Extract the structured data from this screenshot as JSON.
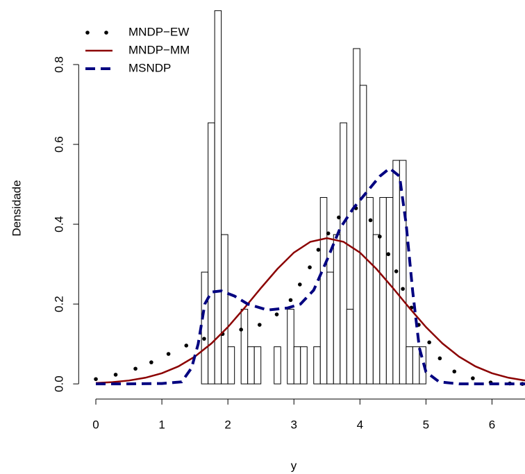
{
  "chart_data": {
    "type": "histogram",
    "x_label": "y",
    "y_label": "Densidade",
    "xlim": [
      -0.26,
      6.5
    ],
    "ylim": [
      -0.038,
      0.96
    ],
    "xticks": [
      0,
      1,
      2,
      3,
      4,
      5,
      6
    ],
    "yticks": [
      {
        "value": 0,
        "label": "0.0"
      },
      {
        "value": 0.2,
        "label": "0.2"
      },
      {
        "value": 0.4,
        "label": "0.4"
      },
      {
        "value": 0.6,
        "label": "0.6"
      },
      {
        "value": 0.8,
        "label": "0.8"
      }
    ],
    "legend": "top-left",
    "bins": [
      1.6,
      1.7,
      1.8,
      1.9,
      2.0,
      2.1,
      2.2,
      2.3,
      2.4,
      2.5,
      2.6,
      2.7,
      2.8,
      2.9,
      3.0,
      3.1,
      3.2,
      3.3,
      3.4,
      3.5,
      3.6,
      3.7,
      3.8,
      3.9,
      4.0,
      4.1,
      4.2,
      4.3,
      4.4,
      4.5,
      4.6,
      4.7,
      4.8,
      4.9,
      5.0
    ],
    "values": [
      0.28,
      0.654,
      0.935,
      0.374,
      0.093,
      0,
      0.187,
      0.093,
      0.093,
      0,
      0,
      0.093,
      0,
      0.187,
      0.093,
      0.093,
      0,
      0.093,
      0.467,
      0.28,
      0.374,
      0.654,
      0.187,
      0.84,
      0.748,
      0.467,
      0.374,
      0.467,
      0.467,
      0.56,
      0.56,
      0.093,
      0.093,
      0.093
    ],
    "series": [
      {
        "name": "MNDP−EW",
        "color": "#000000",
        "style": "points",
        "x": [
          0,
          0.3,
          0.6,
          0.84,
          1.1,
          1.37,
          1.64,
          1.92,
          2.2,
          2.48,
          2.74,
          2.95,
          3.09,
          3.24,
          3.37,
          3.52,
          3.68,
          3.94,
          4.16,
          4.3,
          4.43,
          4.55,
          4.65,
          4.78,
          4.89,
          5.05,
          5.21,
          5.43,
          5.71,
          5.98,
          6.27,
          6.46
        ],
        "values": [
          0.012,
          0.023,
          0.038,
          0.054,
          0.075,
          0.096,
          0.113,
          0.125,
          0.136,
          0.148,
          0.174,
          0.21,
          0.249,
          0.292,
          0.336,
          0.377,
          0.417,
          0.44,
          0.41,
          0.369,
          0.325,
          0.282,
          0.238,
          0.191,
          0.148,
          0.104,
          0.064,
          0.031,
          0.014,
          0.0035,
          0.001,
          0
        ]
      },
      {
        "name": "MNDP−MM",
        "color": "#8b0000",
        "style": "solid",
        "x": [
          0,
          0.25,
          0.5,
          0.75,
          1,
          1.25,
          1.5,
          1.75,
          2,
          2.25,
          2.5,
          2.75,
          3,
          3.25,
          3.5,
          3.75,
          4,
          4.25,
          4.5,
          4.75,
          5,
          5.25,
          5.5,
          5.75,
          6,
          6.25,
          6.5
        ],
        "values": [
          0.0022,
          0.0044,
          0.0084,
          0.0154,
          0.0267,
          0.0438,
          0.0684,
          0.1013,
          0.1423,
          0.19,
          0.24,
          0.288,
          0.329,
          0.356,
          0.365,
          0.356,
          0.329,
          0.288,
          0.24,
          0.19,
          0.1423,
          0.1013,
          0.0684,
          0.0438,
          0.0267,
          0.0154,
          0.0084
        ]
      },
      {
        "name": "MSNDP",
        "color": "#000080",
        "style": "dashed",
        "x": [
          0,
          0.5,
          1,
          1.3,
          1.45,
          1.55,
          1.65,
          1.75,
          1.9,
          2.1,
          2.3,
          2.6,
          2.9,
          3.1,
          3.3,
          3.5,
          3.7,
          3.9,
          4.1,
          4.3,
          4.45,
          4.6,
          4.7,
          4.8,
          4.9,
          5,
          5.2,
          5.5,
          6,
          6.5
        ],
        "values": [
          0,
          0,
          0.001,
          0.005,
          0.04,
          0.1,
          0.2,
          0.23,
          0.233,
          0.22,
          0.2,
          0.185,
          0.19,
          0.2,
          0.235,
          0.31,
          0.39,
          0.44,
          0.48,
          0.52,
          0.54,
          0.52,
          0.4,
          0.23,
          0.09,
          0.03,
          0.005,
          0,
          0,
          0
        ]
      }
    ]
  }
}
